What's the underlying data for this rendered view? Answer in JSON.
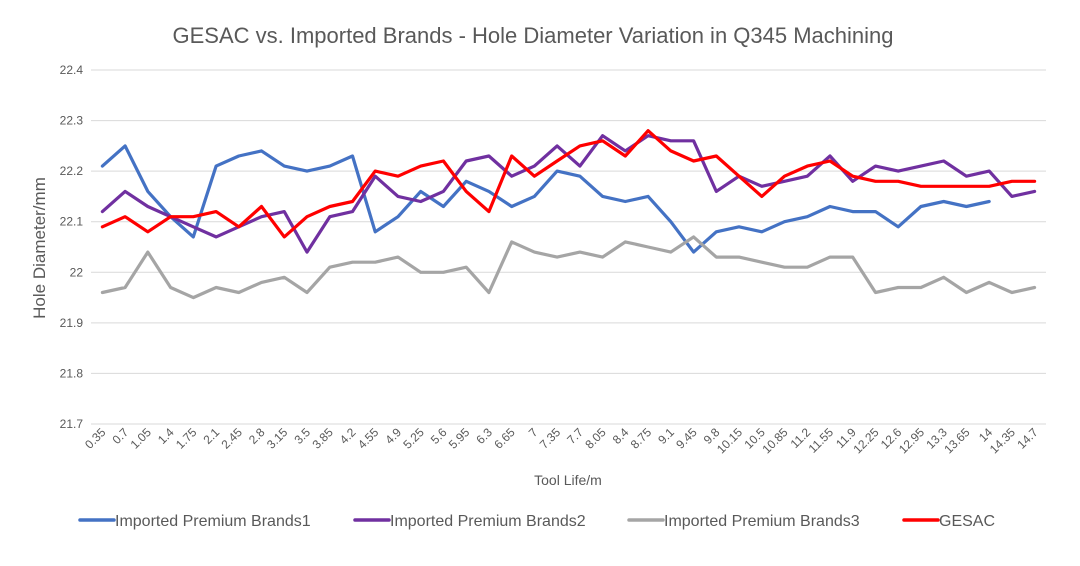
{
  "chart_data": {
    "type": "line",
    "title": "GESAC vs. Imported Brands - Hole Diameter Variation in Q345 Machining",
    "xlabel": "Tool Life/m",
    "ylabel": "Hole Diameter/mm",
    "ylim": [
      21.7,
      22.4
    ],
    "yticks": [
      "21.7",
      "21.8",
      "21.9",
      "22",
      "22.1",
      "22.2",
      "22.3",
      "22.4"
    ],
    "grid": true,
    "legend_position": "bottom",
    "categories": [
      "0.35",
      "0.7",
      "1.05",
      "1.4",
      "1.75",
      "2.1",
      "2.45",
      "2.8",
      "3.15",
      "3.5",
      "3.85",
      "4.2",
      "4.55",
      "4.9",
      "5.25",
      "5.6",
      "5.95",
      "6.3",
      "6.65",
      "7",
      "7.35",
      "7.7",
      "8.05",
      "8.4",
      "8.75",
      "9.1",
      "9.45",
      "9.8",
      "10.15",
      "10.5",
      "10.85",
      "11.2",
      "11.55",
      "11.9",
      "12.25",
      "12.6",
      "12.95",
      "13.3",
      "13.65",
      "14",
      "14.35",
      "14.7"
    ],
    "series": [
      {
        "name": "Imported Premium Brands1",
        "color": "#4472c4",
        "values": [
          22.21,
          22.25,
          22.16,
          22.11,
          22.07,
          22.21,
          22.23,
          22.24,
          22.21,
          22.2,
          22.21,
          22.23,
          22.08,
          22.11,
          22.16,
          22.13,
          22.18,
          22.16,
          22.13,
          22.15,
          22.2,
          22.19,
          22.15,
          22.14,
          22.15,
          22.1,
          22.04,
          22.08,
          22.09,
          22.08,
          22.1,
          22.11,
          22.13,
          22.12,
          22.12,
          22.09,
          22.13,
          22.14,
          22.13,
          22.14,
          null,
          null
        ]
      },
      {
        "name": "Imported Premium Brands2",
        "color": "#7030a0",
        "values": [
          22.12,
          22.16,
          22.13,
          22.11,
          22.09,
          22.07,
          22.09,
          22.11,
          22.12,
          22.04,
          22.11,
          22.12,
          22.19,
          22.15,
          22.14,
          22.16,
          22.22,
          22.23,
          22.19,
          22.21,
          22.25,
          22.21,
          22.27,
          22.24,
          22.27,
          22.26,
          22.26,
          22.16,
          22.19,
          22.17,
          22.18,
          22.19,
          22.23,
          22.18,
          22.21,
          22.2,
          22.21,
          22.22,
          22.19,
          22.2,
          22.15,
          22.16
        ]
      },
      {
        "name": "Imported Premium Brands3",
        "color": "#a5a5a5",
        "values": [
          21.96,
          21.97,
          22.04,
          21.97,
          21.95,
          21.97,
          21.96,
          21.98,
          21.99,
          21.96,
          22.01,
          22.02,
          22.02,
          22.03,
          22.0,
          22.0,
          22.01,
          21.96,
          22.06,
          22.04,
          22.03,
          22.04,
          22.03,
          22.06,
          22.05,
          22.04,
          22.07,
          22.03,
          22.03,
          22.02,
          22.01,
          22.01,
          22.03,
          22.03,
          21.96,
          21.97,
          21.97,
          21.99,
          21.96,
          21.98,
          21.96,
          21.97
        ]
      },
      {
        "name": "GESAC",
        "color": "#ff0000",
        "values": [
          22.09,
          22.11,
          22.08,
          22.11,
          22.11,
          22.12,
          22.09,
          22.13,
          22.07,
          22.11,
          22.13,
          22.14,
          22.2,
          22.19,
          22.21,
          22.22,
          22.16,
          22.12,
          22.23,
          22.19,
          22.22,
          22.25,
          22.26,
          22.23,
          22.28,
          22.24,
          22.22,
          22.23,
          22.19,
          22.15,
          22.19,
          22.21,
          22.22,
          22.19,
          22.18,
          22.18,
          22.17,
          22.17,
          22.17,
          22.17,
          22.18,
          22.18
        ]
      }
    ]
  }
}
